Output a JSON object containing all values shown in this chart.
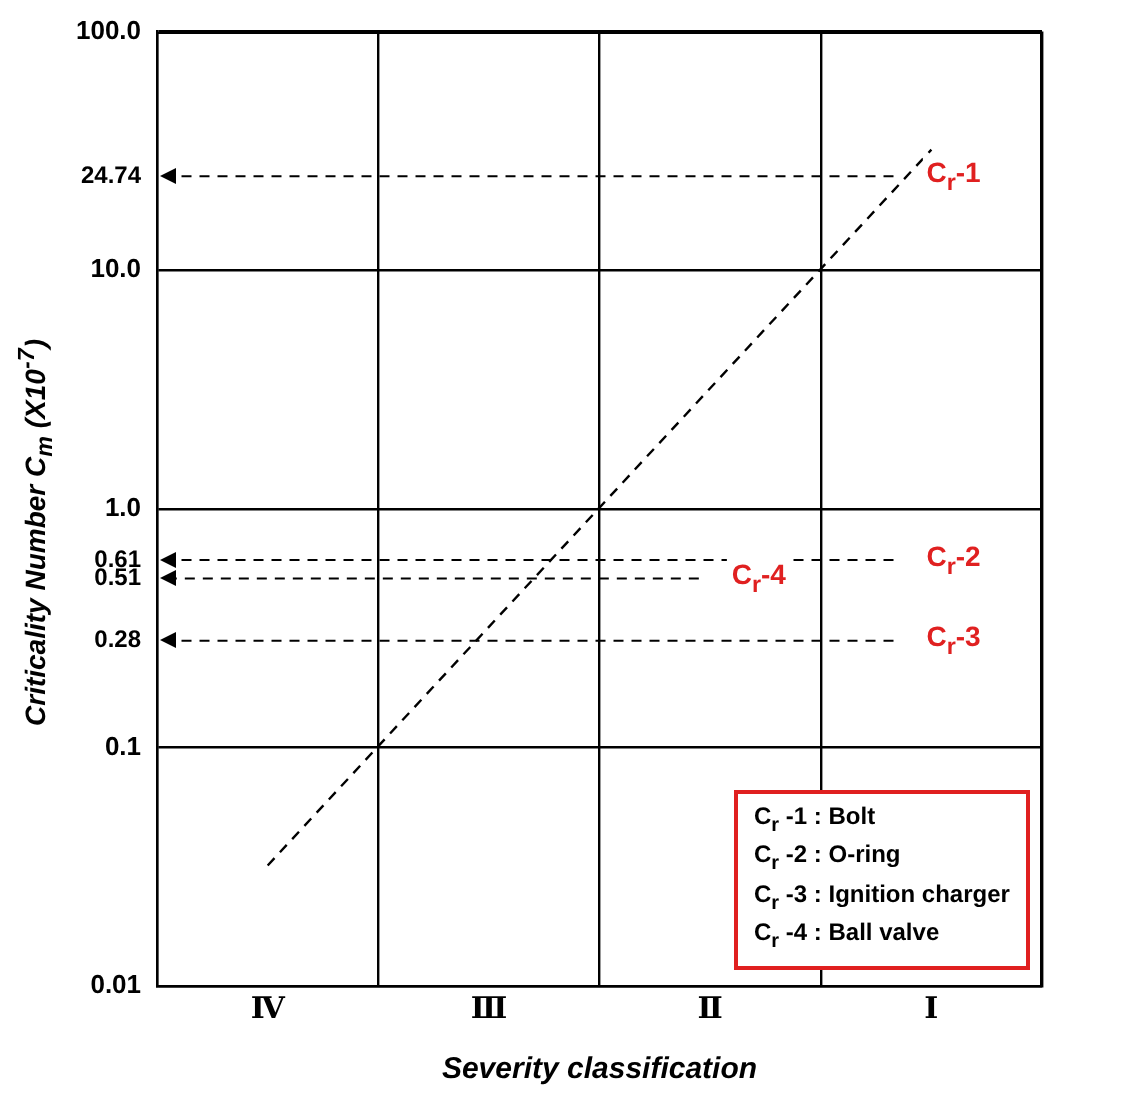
{
  "chart_data": {
    "type": "line",
    "xlabel": "Severity classification",
    "ylabel": "Criticality Number C$_{m}$ (X10$^{-7}$)",
    "categories": [
      "Ⅳ",
      "Ⅲ",
      "Ⅱ",
      "Ⅰ"
    ],
    "ylim": [
      0.01,
      100
    ],
    "yticks": [
      {
        "value": 0.01,
        "label": "0.01"
      },
      {
        "value": 0.1,
        "label": "0.1"
      },
      {
        "value": 1,
        "label": "1.0"
      },
      {
        "value": 10,
        "label": "10.0"
      },
      {
        "value": 100,
        "label": "100.0"
      }
    ],
    "log": "y",
    "grid": true,
    "legend": false,
    "marker": "none",
    "series": [
      {
        "color": "#000000",
        "values": [
          0.032,
          0.32,
          3.2,
          32
        ],
        "line_style": "dashed"
      }
    ],
    "ref_lines": [
      {
        "axis": "y",
        "value": 24.74,
        "label": "24.74",
        "color": "#000000",
        "line_style": "dashed"
      },
      {
        "axis": "y",
        "value": 0.61,
        "label": "0.61",
        "color": "#000000",
        "line_style": "dashed"
      },
      {
        "axis": "y",
        "value": 0.28,
        "label": "0.28",
        "color": "#000000",
        "line_style": "dashed"
      },
      {
        "axis": "y",
        "value": 0.51,
        "label": "0.51",
        "color": "#000000",
        "line_style": "dashed"
      }
    ],
    "annotations": [
      "C$_{r}$-1",
      "C$_{r}$-2",
      "C$_{r}$-3",
      "C$_{r}$-4",
      "C$_{r}$ -1 : Bolt",
      "C$_{r}$ -2 : O-ring",
      "C$_{r}$ -3 : Ignition charger",
      "C$_{r}$ -4 : Ball valve"
    ]
  }
}
